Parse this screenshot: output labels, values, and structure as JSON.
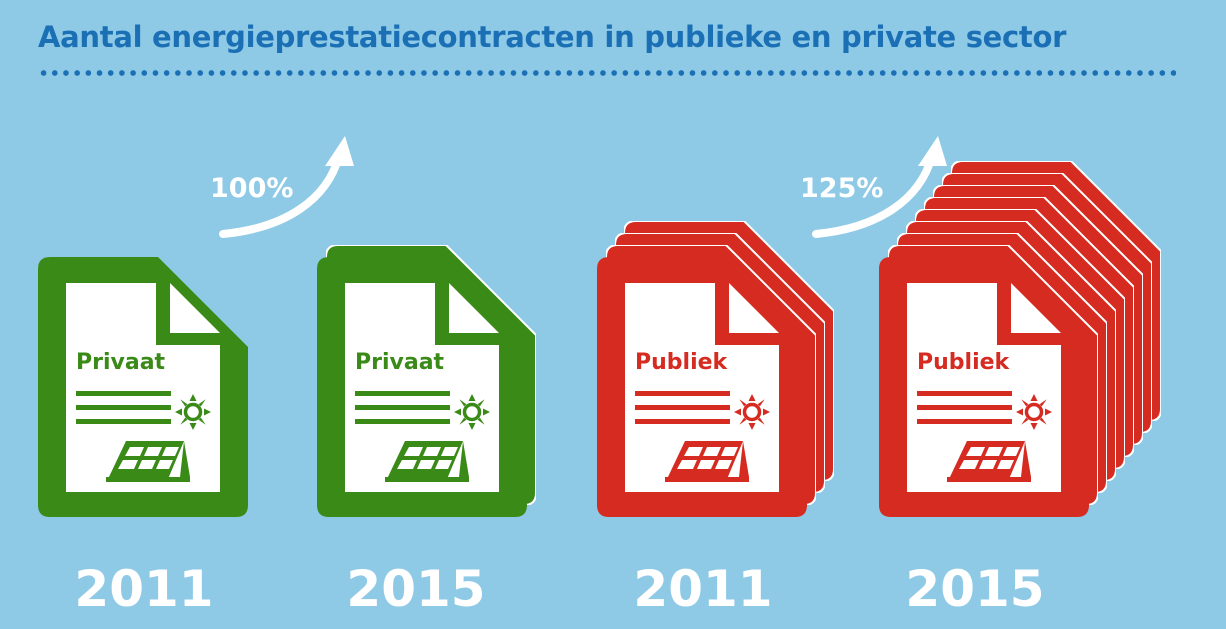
{
  "title": "Aantal energieprestatiecontracten in publieke en private sector",
  "colors": {
    "background": "#8ecae6",
    "title": "#1a6fb5",
    "private": "#3a8a18",
    "public": "#d52b20",
    "white": "#ffffff"
  },
  "private": {
    "label": "Privaat",
    "growth": "100%",
    "years": [
      "2011",
      "2015"
    ],
    "doc_counts": [
      1,
      2
    ]
  },
  "public": {
    "label": "Publiek",
    "growth": "125%",
    "years": [
      "2011",
      "2015"
    ],
    "doc_counts": [
      4,
      9
    ]
  },
  "icons": [
    "document-icon",
    "sun-icon",
    "solar-panel-icon",
    "growth-arrow-icon"
  ]
}
